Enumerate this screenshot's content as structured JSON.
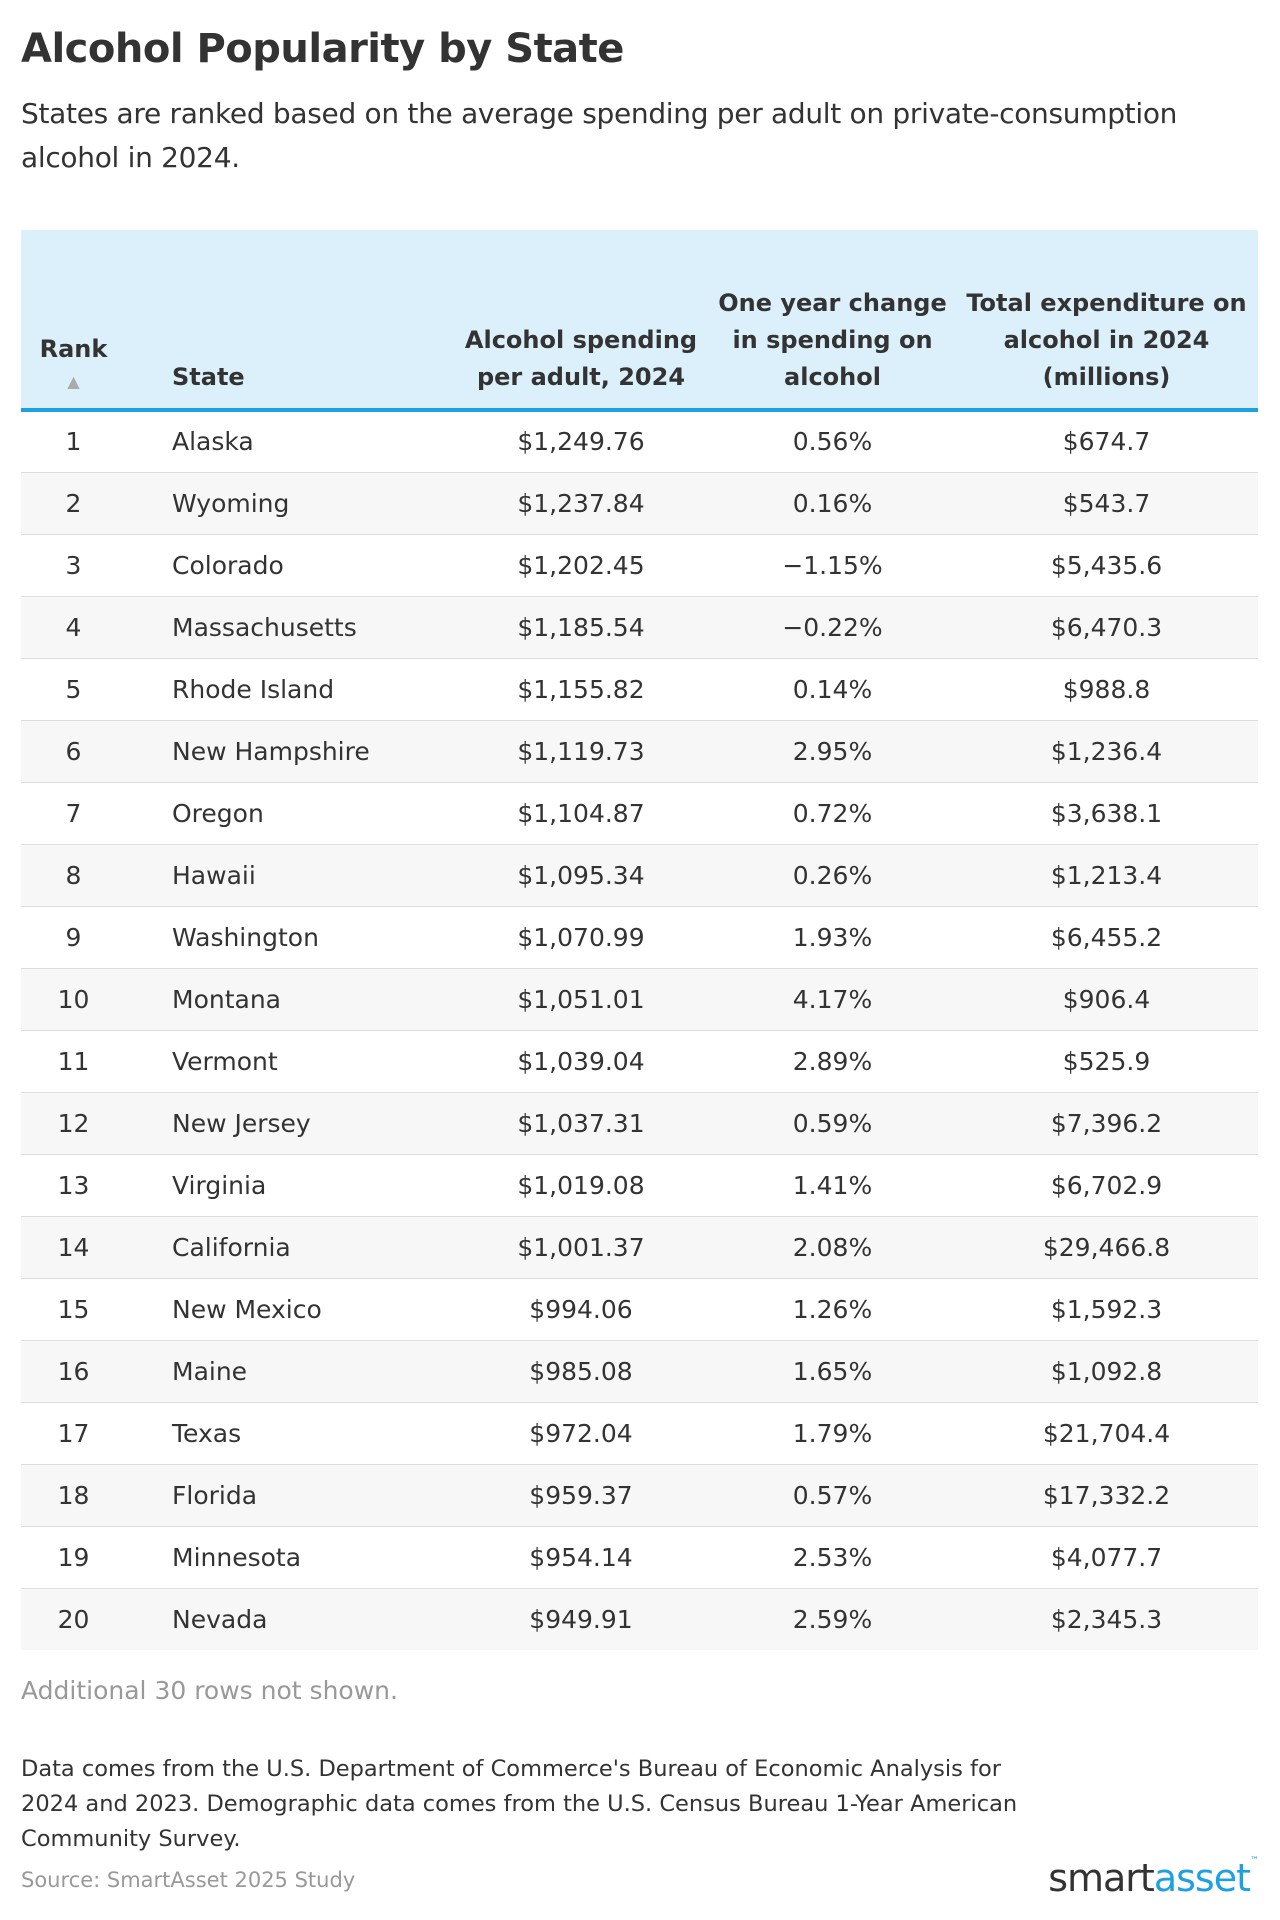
{
  "title": "Alcohol Popularity by State",
  "subtitle": "States are ranked based on the average spending per adult on private-consumption alcohol in 2024.",
  "table": {
    "headers": {
      "rank": "Rank",
      "state": "State",
      "spending": "Alcohol spending per adult, 2024",
      "change": "One year change in spending on alcohol",
      "total": "Total expenditure on alcohol in 2024 (millions)"
    },
    "sort": {
      "column": "rank",
      "direction": "ascending",
      "icon": "triangle-up-icon"
    },
    "rows": [
      [
        "1",
        "Alaska",
        "$1,249.76",
        "0.56%",
        "$674.7"
      ],
      [
        "2",
        "Wyoming",
        "$1,237.84",
        "0.16%",
        "$543.7"
      ],
      [
        "3",
        "Colorado",
        "$1,202.45",
        "−1.15%",
        "$5,435.6"
      ],
      [
        "4",
        "Massachusetts",
        "$1,185.54",
        "−0.22%",
        "$6,470.3"
      ],
      [
        "5",
        "Rhode Island",
        "$1,155.82",
        "0.14%",
        "$988.8"
      ],
      [
        "6",
        "New Hampshire",
        "$1,119.73",
        "2.95%",
        "$1,236.4"
      ],
      [
        "7",
        "Oregon",
        "$1,104.87",
        "0.72%",
        "$3,638.1"
      ],
      [
        "8",
        "Hawaii",
        "$1,095.34",
        "0.26%",
        "$1,213.4"
      ],
      [
        "9",
        "Washington",
        "$1,070.99",
        "1.93%",
        "$6,455.2"
      ],
      [
        "10",
        "Montana",
        "$1,051.01",
        "4.17%",
        "$906.4"
      ],
      [
        "11",
        "Vermont",
        "$1,039.04",
        "2.89%",
        "$525.9"
      ],
      [
        "12",
        "New Jersey",
        "$1,037.31",
        "0.59%",
        "$7,396.2"
      ],
      [
        "13",
        "Virginia",
        "$1,019.08",
        "1.41%",
        "$6,702.9"
      ],
      [
        "14",
        "California",
        "$1,001.37",
        "2.08%",
        "$29,466.8"
      ],
      [
        "15",
        "New Mexico",
        "$994.06",
        "1.26%",
        "$1,592.3"
      ],
      [
        "16",
        "Maine",
        "$985.08",
        "1.65%",
        "$1,092.8"
      ],
      [
        "17",
        "Texas",
        "$972.04",
        "1.79%",
        "$21,704.4"
      ],
      [
        "18",
        "Florida",
        "$959.37",
        "0.57%",
        "$17,332.2"
      ],
      [
        "19",
        "Minnesota",
        "$954.14",
        "2.53%",
        "$4,077.7"
      ],
      [
        "20",
        "Nevada",
        "$949.91",
        "2.59%",
        "$2,345.3"
      ]
    ]
  },
  "more_rows": "Additional 30 rows not shown.",
  "note": "Data comes from the U.S. Department of Commerce's Bureau of Economic Analysis for 2024 and 2023. Demographic data comes from the U.S. Census Bureau 1-Year American Community Survey.",
  "source": "Source: SmartAsset 2025 Study",
  "logo": {
    "part1": "smart",
    "part2": "asset",
    "tm": "™"
  },
  "colors": {
    "header_bg": "#dcf0fc",
    "accent": "#1fa0e0",
    "row_alt": "#f7f7f7"
  }
}
